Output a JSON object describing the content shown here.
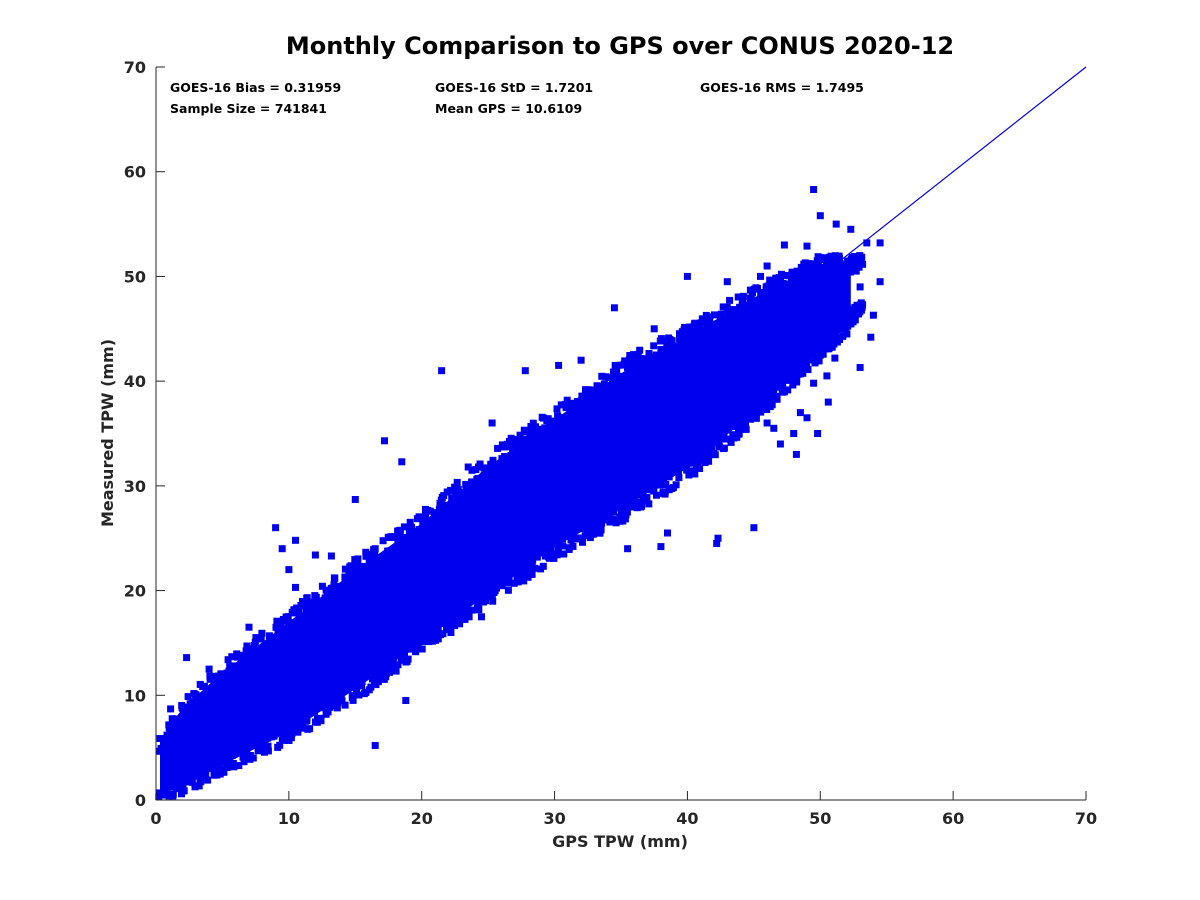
{
  "chart_data": {
    "type": "scatter",
    "title": "Monthly Comparison to GPS over CONUS 2020-12",
    "xlabel": "GPS TPW (mm)",
    "ylabel": "Measured TPW (mm)",
    "xlim": [
      0,
      70
    ],
    "ylim": [
      0,
      70
    ],
    "xticks": [
      0,
      10,
      20,
      30,
      40,
      50,
      60,
      70
    ],
    "yticks": [
      0,
      10,
      20,
      30,
      40,
      50,
      60,
      70
    ],
    "grid": false,
    "marker": "square",
    "color": "#0000ee",
    "reference_line": {
      "type": "one-to-one",
      "x": [
        0,
        70
      ],
      "y": [
        0,
        70
      ],
      "color": "#0000ee"
    },
    "stats": {
      "bias": "GOES-16 Bias = 0.31959",
      "std": "GOES-16 StD = 1.7201",
      "rms": "GOES-16 RMS = 1.7495",
      "sample_size": "Sample Size = 741841",
      "mean_gps": "Mean GPS = 10.6109"
    },
    "dense_band": {
      "description_points": [
        [
          0,
          0.1,
          5.5
        ],
        [
          2,
          0.5,
          9.5
        ],
        [
          5,
          2.5,
          13
        ],
        [
          10,
          5.5,
          18
        ],
        [
          15,
          9.5,
          23
        ],
        [
          20,
          14,
          27.5
        ],
        [
          25,
          18.5,
          33
        ],
        [
          30,
          23,
          37.5
        ],
        [
          35,
          26.5,
          42
        ],
        [
          40,
          30.5,
          45.5
        ],
        [
          45,
          36,
          49
        ],
        [
          50,
          42,
          52
        ],
        [
          53,
          46,
          52
        ]
      ]
    },
    "outliers": [
      [
        49.5,
        58.3
      ],
      [
        50.0,
        55.8
      ],
      [
        51.2,
        55.0
      ],
      [
        53.5,
        53.2
      ],
      [
        54.5,
        53.2
      ],
      [
        52.3,
        54.5
      ],
      [
        49.0,
        52.9
      ],
      [
        47.3,
        53.0
      ],
      [
        54.0,
        46.3
      ],
      [
        53.8,
        44.2
      ],
      [
        53.0,
        41.3
      ],
      [
        52.0,
        44.5
      ],
      [
        51.1,
        42.2
      ],
      [
        50.5,
        40.5
      ],
      [
        50.6,
        38.0
      ],
      [
        49.8,
        35.0
      ],
      [
        49.5,
        39.8
      ],
      [
        48.0,
        35.0
      ],
      [
        48.2,
        33.0
      ],
      [
        45.0,
        26.0
      ],
      [
        42.3,
        25.0
      ],
      [
        42.2,
        24.5
      ],
      [
        38.0,
        24.2
      ],
      [
        38.5,
        25.5
      ],
      [
        35.5,
        24.0
      ],
      [
        30.0,
        27.0
      ],
      [
        20.5,
        15.2
      ],
      [
        19.0,
        18.0
      ],
      [
        16.5,
        5.2
      ],
      [
        18.8,
        9.5
      ],
      [
        24.5,
        17.5
      ],
      [
        21.5,
        41.0
      ],
      [
        30.3,
        41.5
      ],
      [
        27.8,
        41.0
      ],
      [
        37.5,
        45.0
      ],
      [
        32.0,
        42.0
      ],
      [
        25.3,
        36.0
      ],
      [
        17.2,
        34.3
      ],
      [
        18.5,
        32.3
      ],
      [
        15.0,
        28.7
      ],
      [
        9.0,
        26.0
      ],
      [
        10.5,
        24.8
      ],
      [
        9.5,
        24.0
      ],
      [
        12.0,
        23.4
      ],
      [
        13.2,
        23.3
      ],
      [
        10.0,
        22.0
      ],
      [
        10.5,
        20.3
      ],
      [
        1.1,
        8.7
      ],
      [
        0.7,
        4.5
      ],
      [
        2.3,
        13.6
      ],
      [
        4.0,
        12.5
      ],
      [
        7.0,
        16.5
      ],
      [
        13.5,
        15.0
      ],
      [
        23.5,
        31.8
      ],
      [
        34.5,
        47.0
      ],
      [
        40.0,
        50.0
      ],
      [
        43.0,
        49.5
      ],
      [
        45.5,
        50.0
      ],
      [
        46.0,
        51.0
      ],
      [
        44.5,
        36.5
      ],
      [
        46.0,
        36.0
      ],
      [
        46.5,
        35.5
      ],
      [
        47.0,
        34.0
      ],
      [
        48.5,
        37.0
      ],
      [
        49.0,
        36.5
      ],
      [
        51.5,
        45.0
      ],
      [
        52.5,
        46.0
      ],
      [
        50.7,
        46.0
      ],
      [
        53.0,
        49.0
      ],
      [
        54.5,
        49.5
      ]
    ]
  }
}
